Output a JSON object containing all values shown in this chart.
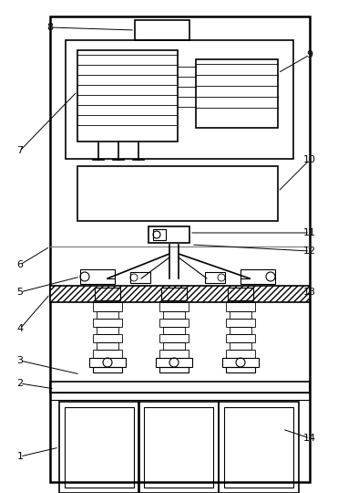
{
  "fig_width": 3.82,
  "fig_height": 5.4,
  "dpi": 100,
  "bg_color": "#ffffff",
  "line_color": "#000000"
}
